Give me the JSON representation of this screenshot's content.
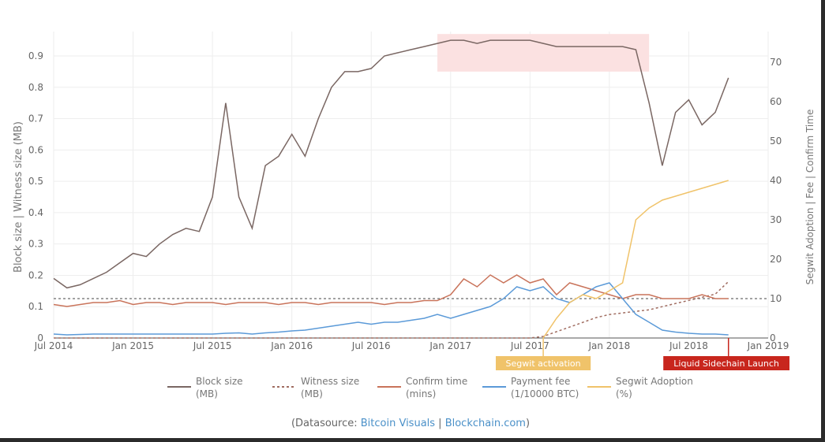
{
  "chart_data": {
    "type": "line",
    "ylabel_left": "Block size | Witness size (MB)",
    "ylabel_right": "Segwit Adoption | Fee | Confirm Time",
    "ylim_left": [
      0,
      0.95
    ],
    "ylim_right": [
      0,
      76
    ],
    "yticks_left": [
      "0",
      "0.1",
      "0.2",
      "0.3",
      "0.4",
      "0.5",
      "0.6",
      "0.7",
      "0.8",
      "0.9"
    ],
    "yticks_right": [
      "0",
      "10",
      "20",
      "30",
      "40",
      "50",
      "60",
      "70"
    ],
    "xticks": [
      "Jul 2014",
      "Jan 2015",
      "Jul 2015",
      "Jan 2016",
      "Jul 2016",
      "Jan 2017",
      "Jul 2017",
      "Jan 2018",
      "Jul 2018",
      "Jan 2019"
    ],
    "grid": true,
    "x": [
      "2014-07",
      "2014-08",
      "2014-09",
      "2014-10",
      "2014-11",
      "2014-12",
      "2015-01",
      "2015-02",
      "2015-03",
      "2015-04",
      "2015-05",
      "2015-06",
      "2015-07",
      "2015-08",
      "2015-09",
      "2015-10",
      "2015-11",
      "2015-12",
      "2016-01",
      "2016-02",
      "2016-03",
      "2016-04",
      "2016-05",
      "2016-06",
      "2016-07",
      "2016-08",
      "2016-09",
      "2016-10",
      "2016-11",
      "2016-12",
      "2017-01",
      "2017-02",
      "2017-03",
      "2017-04",
      "2017-05",
      "2017-06",
      "2017-07",
      "2017-08",
      "2017-09",
      "2017-10",
      "2017-11",
      "2017-12",
      "2018-01",
      "2018-02",
      "2018-03",
      "2018-04",
      "2018-05",
      "2018-06",
      "2018-07",
      "2018-08",
      "2018-09",
      "2018-10"
    ],
    "series": [
      {
        "name": "Block size (MB)",
        "axis": "left",
        "color": "#7a6763",
        "dash": false,
        "values": [
          0.19,
          0.16,
          0.17,
          0.19,
          0.21,
          0.24,
          0.27,
          0.26,
          0.3,
          0.33,
          0.35,
          0.34,
          0.45,
          0.75,
          0.45,
          0.35,
          0.55,
          0.58,
          0.65,
          0.58,
          0.7,
          0.8,
          0.85,
          0.85,
          0.86,
          0.9,
          0.91,
          0.92,
          0.93,
          0.94,
          0.95,
          0.95,
          0.94,
          0.95,
          0.95,
          0.95,
          0.95,
          0.94,
          0.93,
          0.93,
          0.93,
          0.93,
          0.93,
          0.93,
          0.92,
          0.75,
          0.55,
          0.72,
          0.76,
          0.68,
          0.72,
          0.83
        ]
      },
      {
        "name": "Witness size (MB)",
        "axis": "left",
        "color": "#a06c60",
        "dash": true,
        "values": [
          0,
          0,
          0,
          0,
          0,
          0,
          0,
          0,
          0,
          0,
          0,
          0,
          0,
          0,
          0,
          0,
          0,
          0,
          0,
          0,
          0,
          0,
          0,
          0,
          0,
          0,
          0,
          0,
          0,
          0,
          0,
          0,
          0,
          0,
          0,
          0,
          0,
          0.005,
          0.02,
          0.035,
          0.05,
          0.065,
          0.075,
          0.08,
          0.085,
          0.09,
          0.1,
          0.11,
          0.12,
          0.13,
          0.14,
          0.18
        ]
      },
      {
        "name": "Confirm time (mins)",
        "axis": "right",
        "color": "#c9735a",
        "dash": false,
        "values": [
          8.5,
          8,
          8.5,
          9,
          9,
          9.5,
          8.5,
          9,
          9,
          8.5,
          9,
          9,
          9,
          8.5,
          9,
          9,
          9,
          8.5,
          9,
          9,
          8.5,
          9,
          9,
          9,
          9,
          8.5,
          9,
          9,
          9.5,
          9.5,
          11,
          15,
          13,
          16,
          14,
          16,
          14,
          15,
          11,
          14,
          13,
          12,
          11,
          10,
          11,
          11,
          10,
          10,
          10,
          11,
          10,
          10
        ]
      },
      {
        "name": "Payment fee (1/10000 BTC)",
        "axis": "right",
        "color": "#5b9ad8",
        "dash": false,
        "values": [
          1,
          0.8,
          0.9,
          1,
          1,
          1,
          1,
          1,
          1,
          1,
          1,
          1,
          1,
          1.2,
          1.3,
          1,
          1.3,
          1.5,
          1.8,
          2,
          2.5,
          3,
          3.5,
          4,
          3.5,
          4,
          4,
          4.5,
          5,
          6,
          5,
          6,
          7,
          8,
          10,
          13,
          12,
          13,
          10,
          9,
          11,
          13,
          14,
          10,
          6,
          4,
          2,
          1.5,
          1.2,
          1,
          1,
          0.8
        ]
      },
      {
        "name": "Segwit Adoption (%)",
        "axis": "right",
        "color": "#f0c36a",
        "dash": false,
        "values": [
          null,
          null,
          null,
          null,
          null,
          null,
          null,
          null,
          null,
          null,
          null,
          null,
          null,
          null,
          null,
          null,
          null,
          null,
          null,
          null,
          null,
          null,
          null,
          null,
          null,
          null,
          null,
          null,
          null,
          null,
          null,
          null,
          null,
          null,
          null,
          null,
          null,
          0,
          5,
          9,
          11,
          10,
          12,
          14,
          30,
          33,
          35,
          36,
          37,
          38,
          39,
          40
        ]
      }
    ],
    "highlight_region": {
      "x": [
        "2016-12",
        "2018-04"
      ],
      "y": [
        0.85,
        0.97
      ],
      "color": "#fbe1e1"
    },
    "reference_line": {
      "axis": "right",
      "value": 10,
      "dash": true
    },
    "annotations": [
      {
        "x": "2017-08",
        "label": "Segwit activation",
        "color": "#f0c36a"
      },
      {
        "x": "2018-10",
        "label": "Liquid Sidechain Launch",
        "color": "#c8261d"
      }
    ],
    "legend": {
      "placement": "bottom",
      "entries": [
        {
          "line1": "Block size",
          "line2": "(MB)"
        },
        {
          "line1": "Witness size",
          "line2": "(MB)"
        },
        {
          "line1": "Confirm time",
          "line2": "(mins)"
        },
        {
          "line1": "Payment fee",
          "line2": "(1/10000 BTC)"
        },
        {
          "line1": "Segwit Adoption",
          "line2": "(%)"
        }
      ]
    }
  },
  "source": {
    "prefix": "(Datasource: ",
    "link1": "Bitcoin Visuals",
    "sep": " | ",
    "link2": "Blockchain.com",
    "suffix": ")"
  }
}
